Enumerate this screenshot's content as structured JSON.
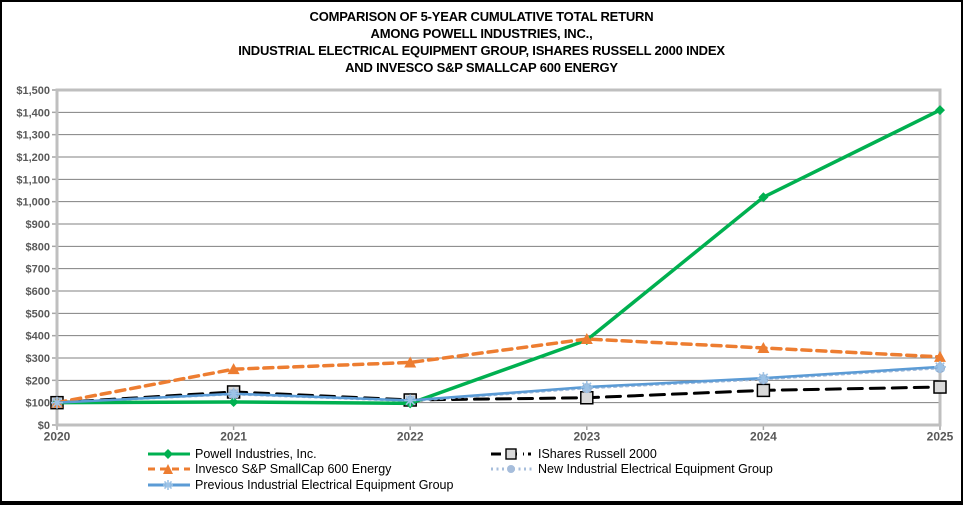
{
  "frame": {
    "background": "#ffffff",
    "border_color": "#000000"
  },
  "title": {
    "lines": [
      "COMPARISON OF 5-YEAR CUMULATIVE TOTAL RETURN",
      "AMONG POWELL INDUSTRIES, INC.,",
      "INDUSTRIAL ELECTRICAL EQUIPMENT GROUP, ISHARES RUSSELL 2000 INDEX",
      "AND INVESCO S&P SMALLCAP 600 ENERGY"
    ],
    "color": "#000000"
  },
  "chart_data": {
    "type": "line",
    "x": [
      2020,
      2021,
      2022,
      2023,
      2024,
      2025
    ],
    "x_tick_labels": [
      "2020",
      "2021",
      "2022",
      "2023",
      "2024",
      "2025"
    ],
    "y_tick_labels": [
      "$0",
      "$100",
      "$200",
      "$300",
      "$400",
      "$500",
      "$600",
      "$700",
      "$800",
      "$900",
      "$1,000",
      "$1,100",
      "$1,200",
      "$1,300",
      "$1,400",
      "$1,500"
    ],
    "ylim": [
      0,
      1500
    ],
    "ytick_step": 100,
    "grid": "horizontal",
    "legend_position": "bottom",
    "axis_color": "#BFBFBF",
    "gridline_color": "#808080",
    "tick_color": "#A6A6A6",
    "tick_label_color": "#595959",
    "series": [
      {
        "name": "Powell Industries, Inc.",
        "values": [
          100,
          103,
          97,
          380,
          1020,
          1410
        ],
        "color": "#00B050",
        "line_style": "solid",
        "marker": "diamond",
        "marker_color": "#00B050"
      },
      {
        "name": "IShares Russell 2000",
        "values": [
          100,
          148,
          112,
          122,
          155,
          170
        ],
        "color": "#000000",
        "line_style": "dashed",
        "marker": "square",
        "marker_color": "#D9D9D9",
        "marker_stroke": "#000000"
      },
      {
        "name": "Invesco S&P SmallCap 600 Energy",
        "values": [
          100,
          250,
          280,
          385,
          345,
          305
        ],
        "color": "#ED7D31",
        "line_style": "dashed",
        "marker": "triangle",
        "marker_color": "#ED7D31"
      },
      {
        "name": "New Industrial Electrical Equipment Group",
        "values": [
          100,
          138,
          108,
          165,
          205,
          255
        ],
        "color": "#A6BDDB",
        "line_style": "dotted",
        "marker": "circle",
        "marker_color": "#A6BDDB",
        "marker_stroke": "#8FA8C8"
      },
      {
        "name": "Previous Industrial Electrical Equipment Group",
        "values": [
          100,
          140,
          110,
          170,
          210,
          260
        ],
        "color": "#5B9BD5",
        "line_style": "solid",
        "marker": "asterisk",
        "marker_color": "#9DC3E6"
      }
    ],
    "draw_order": [
      1,
      3,
      0,
      2,
      4
    ],
    "legend_columns": [
      {
        "series": [
          0,
          2,
          4
        ]
      },
      {
        "series": [
          1,
          3
        ]
      }
    ]
  }
}
